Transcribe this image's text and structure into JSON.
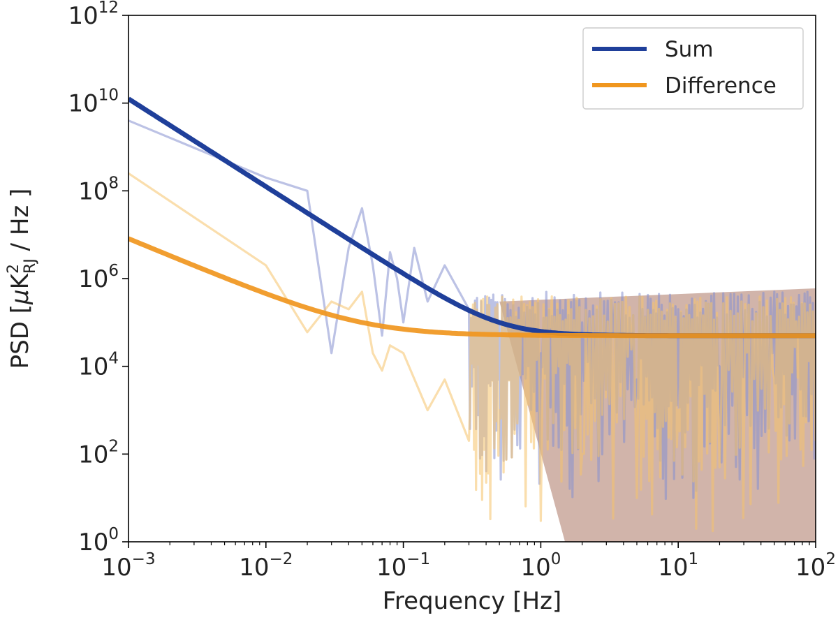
{
  "chart_data": {
    "type": "line",
    "xlabel": "Frequency [Hz]",
    "ylabel": {
      "prefix": "PSD [",
      "mu": "μ",
      "unit": "K",
      "power": "2",
      "sub": "RJ",
      "suffix": " / Hz ]"
    },
    "xscale": "log",
    "yscale": "log",
    "xlim": [
      0.001,
      100
    ],
    "ylim": [
      1,
      1000000000000
    ],
    "x_ticks": [
      {
        "value": 0.001,
        "base": "10",
        "exp": "−3"
      },
      {
        "value": 0.01,
        "base": "10",
        "exp": "−2"
      },
      {
        "value": 0.1,
        "base": "10",
        "exp": "−1"
      },
      {
        "value": 1,
        "base": "10",
        "exp": "0"
      },
      {
        "value": 10,
        "base": "10",
        "exp": "1"
      },
      {
        "value": 100,
        "base": "10",
        "exp": "2"
      }
    ],
    "y_ticks": [
      {
        "value": 1,
        "base": "10",
        "exp": "0"
      },
      {
        "value": 100,
        "base": "10",
        "exp": "2"
      },
      {
        "value": 10000,
        "base": "10",
        "exp": "4"
      },
      {
        "value": 1000000,
        "base": "10",
        "exp": "6"
      },
      {
        "value": 100000000,
        "base": "10",
        "exp": "8"
      },
      {
        "value": 10000000000,
        "base": "10",
        "exp": "10"
      },
      {
        "value": 1000000000000,
        "base": "10",
        "exp": "12"
      }
    ],
    "legend_position": "top-right",
    "grid": false,
    "series": [
      {
        "name": "Sum",
        "kind": "model",
        "color": "#1f3f9a",
        "model": {
          "white_noise": 50000,
          "f_knee": 0.5,
          "alpha": 2
        },
        "x": [
          0.001,
          0.002,
          0.005,
          0.01,
          0.02,
          0.05,
          0.1,
          0.2,
          0.5,
          1,
          2,
          5,
          10,
          20,
          50,
          100
        ],
        "y": [
          12500000000,
          3125000000,
          500000000,
          125000000,
          31300000,
          5050000,
          1300000,
          362500,
          100000,
          62500,
          53100,
          50500,
          50100,
          50000,
          50000,
          50000
        ]
      },
      {
        "name": "Difference",
        "kind": "model",
        "color": "#f0961e",
        "model": {
          "white_noise": 50000,
          "f_knee": 0.05,
          "alpha": 1.3
        },
        "x": [
          0.001,
          0.002,
          0.005,
          0.01,
          0.02,
          0.05,
          0.1,
          0.2,
          0.5,
          1,
          2,
          5,
          10,
          20,
          50,
          100
        ],
        "y": [
          8000000,
          3300000,
          1000000,
          400000,
          170000,
          100000,
          70000,
          60000,
          54000,
          52000,
          51000,
          50400,
          50200,
          50100,
          50000,
          50000
        ]
      },
      {
        "name": "",
        "kind": "noisy-estimate",
        "color": "#8590cf",
        "opacity": 0.55,
        "x": [
          0.001,
          0.01,
          0.02,
          0.03,
          0.04,
          0.05,
          0.06,
          0.07,
          0.08,
          0.09,
          0.1,
          0.12,
          0.15,
          0.2,
          0.3,
          0.5,
          1,
          2,
          5,
          10,
          20,
          50,
          100
        ],
        "y": [
          4000000000,
          200000000,
          100000000,
          20000,
          5000000,
          40000000,
          2000000,
          50000,
          4000000,
          1000000,
          100000,
          5000000,
          300000,
          2000000,
          200000,
          100000,
          20000,
          100000,
          5000,
          200000,
          10000,
          500000,
          50000
        ]
      },
      {
        "name": "",
        "kind": "noisy-estimate",
        "color": "#f6c36a",
        "opacity": 0.55,
        "x": [
          0.001,
          0.01,
          0.02,
          0.03,
          0.04,
          0.05,
          0.06,
          0.07,
          0.08,
          0.1,
          0.15,
          0.2,
          0.3,
          0.5,
          1,
          2,
          5,
          10,
          20,
          50,
          100
        ],
        "y": [
          250000000,
          2000000,
          60000,
          300000,
          200000,
          500000,
          20000,
          8000,
          30000,
          20000,
          1000,
          5000,
          200,
          1000,
          3,
          100,
          10,
          1000,
          50,
          5000,
          200
        ]
      }
    ],
    "noise_band": {
      "x_from": 0.5,
      "x_to": 100,
      "upper": 600000,
      "lower": 1
    }
  }
}
